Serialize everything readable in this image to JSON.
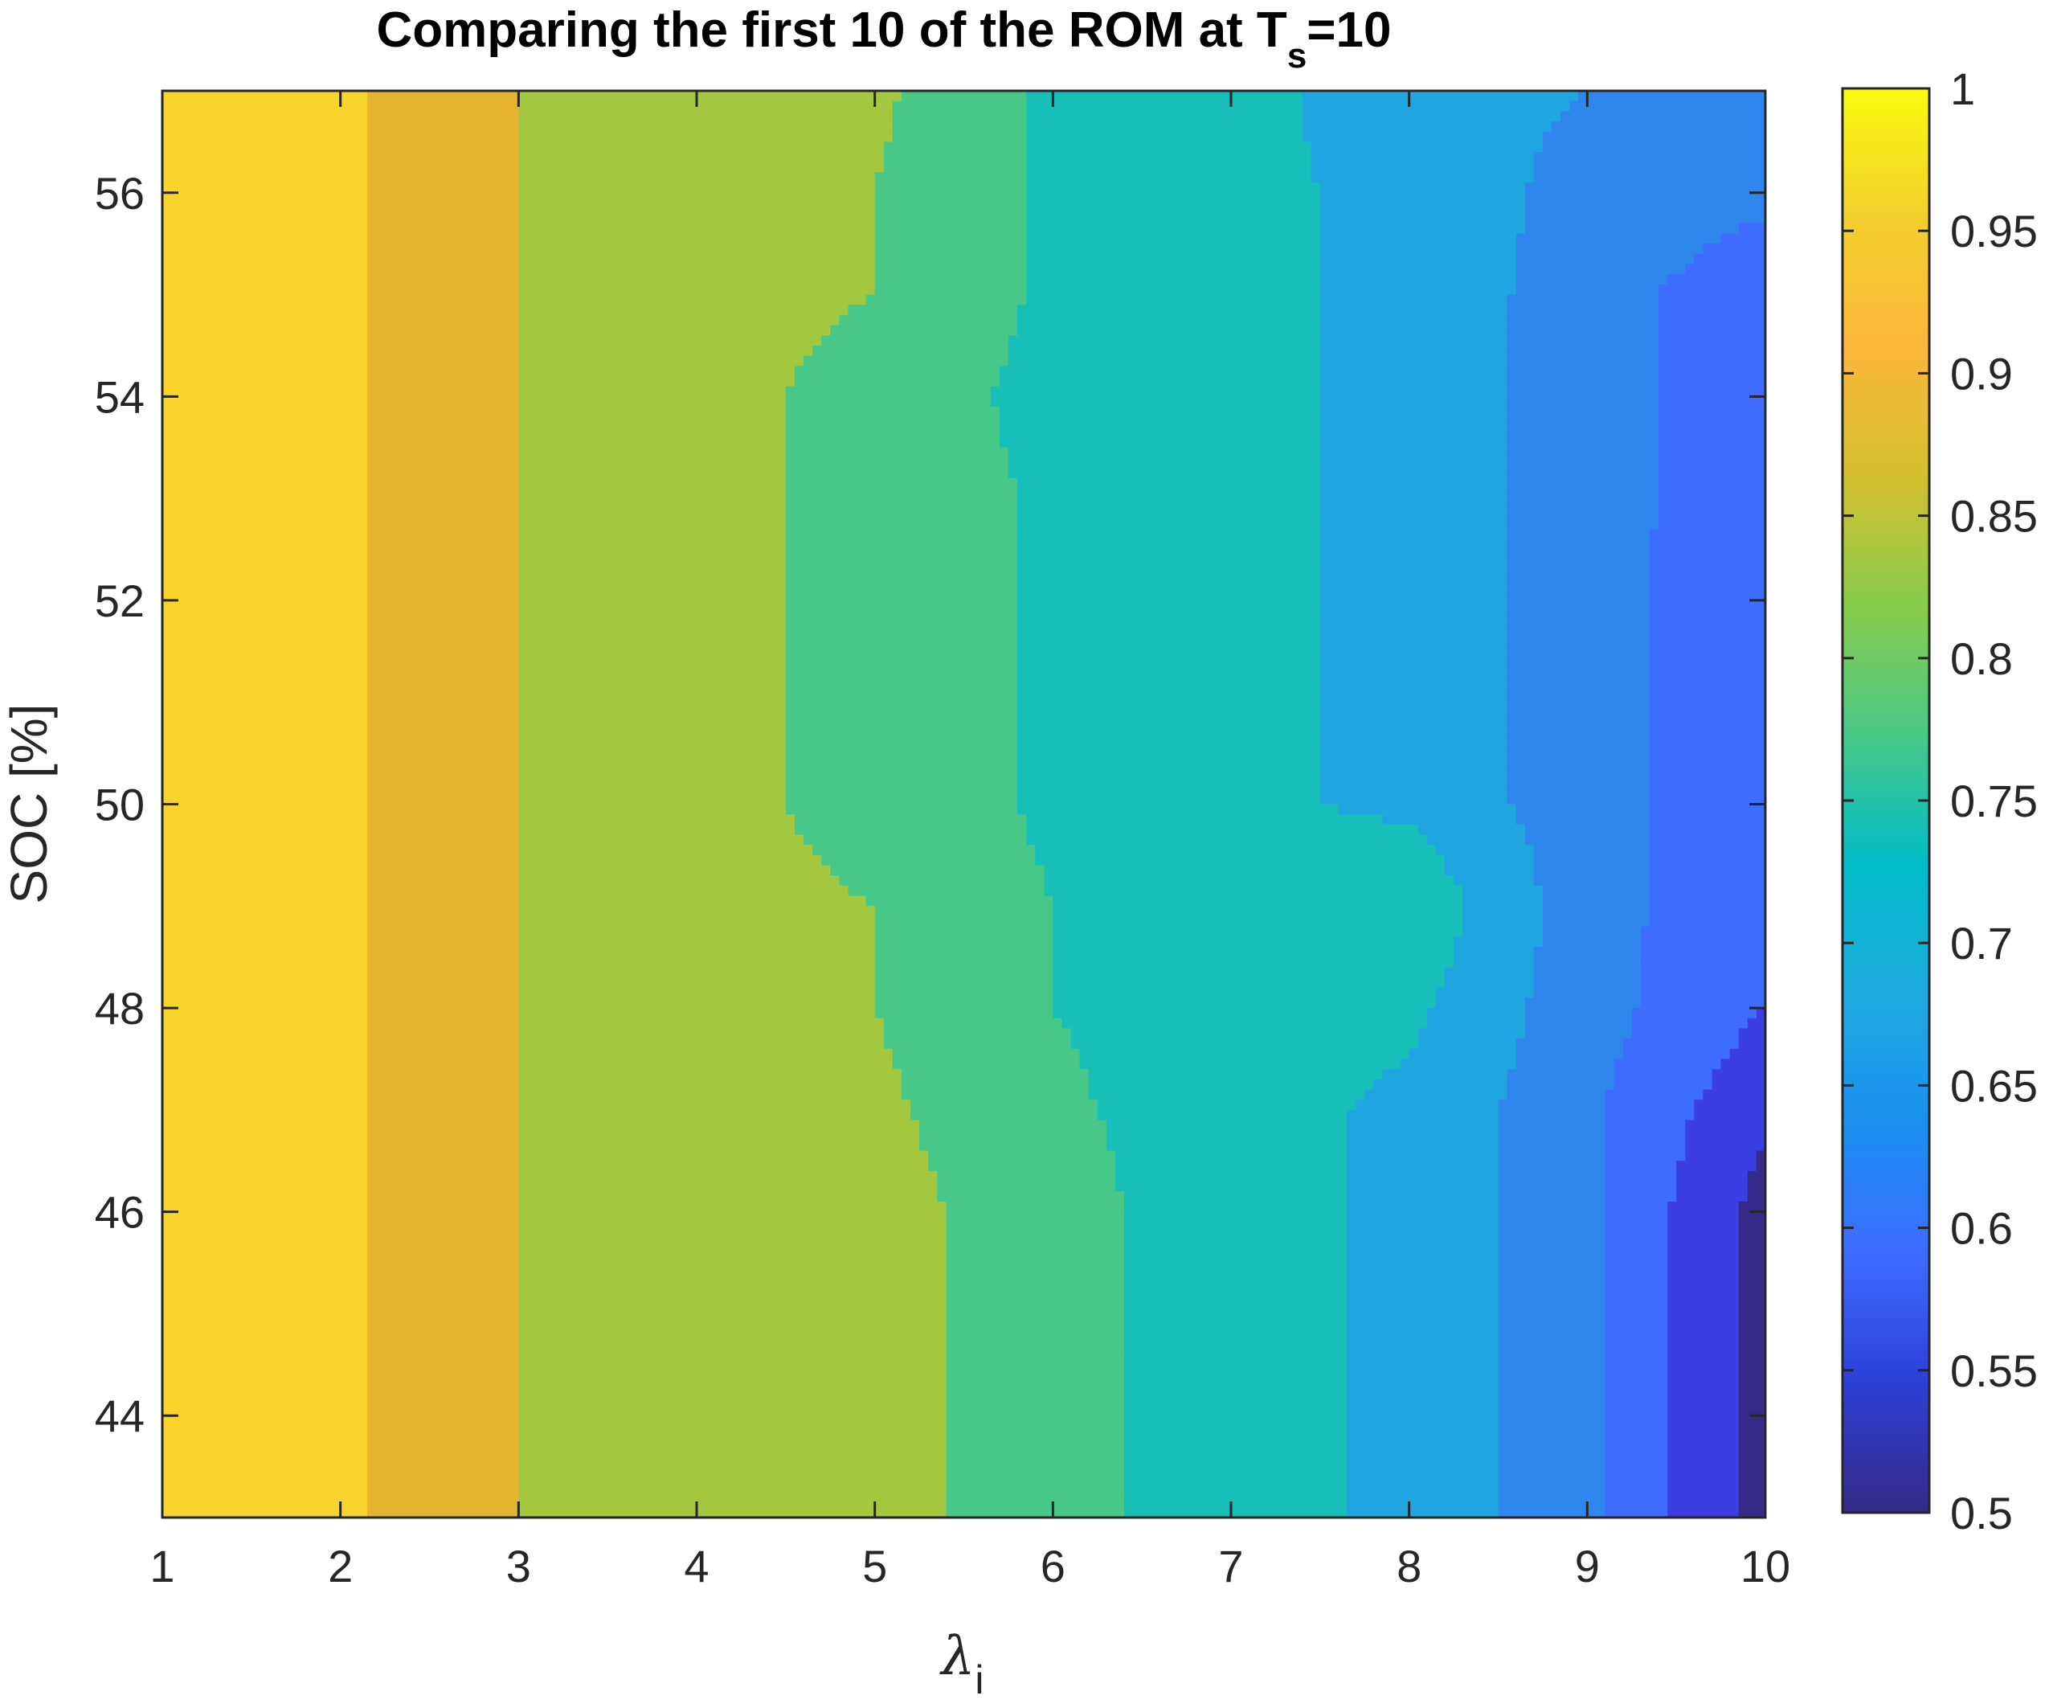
{
  "chart_data": {
    "type": "heatmap",
    "subtype": "filled-contour",
    "title_parts": {
      "main": "Comparing the first 10 of the ROM at T",
      "subscript": "s",
      "tail": "=10"
    },
    "xlabel_parts": {
      "main": "λ",
      "subscript": "i"
    },
    "ylabel": "SOC [%]",
    "xlim": [
      1,
      10
    ],
    "ylim": [
      43,
      57
    ],
    "xticks": [
      "1",
      "2",
      "3",
      "4",
      "5",
      "6",
      "7",
      "8",
      "9",
      "10"
    ],
    "yticks": [
      "44",
      "46",
      "48",
      "50",
      "52",
      "54",
      "56"
    ],
    "x": [
      1,
      2,
      3,
      4,
      5,
      6,
      7,
      8,
      9,
      10
    ],
    "y": [
      43,
      44,
      45,
      46,
      47,
      48,
      49,
      50,
      51,
      52,
      53,
      54,
      55,
      56,
      57
    ],
    "z_approx": [
      [
        0.96,
        0.96,
        0.9,
        0.89,
        0.87,
        0.82,
        0.77,
        0.74,
        0.66,
        0.53
      ],
      [
        0.96,
        0.96,
        0.9,
        0.89,
        0.87,
        0.82,
        0.77,
        0.74,
        0.66,
        0.53
      ],
      [
        0.96,
        0.96,
        0.9,
        0.89,
        0.87,
        0.82,
        0.77,
        0.74,
        0.66,
        0.53
      ],
      [
        0.96,
        0.96,
        0.9,
        0.89,
        0.87,
        0.82,
        0.77,
        0.74,
        0.66,
        0.53
      ],
      [
        0.96,
        0.96,
        0.9,
        0.86,
        0.86,
        0.81,
        0.77,
        0.74,
        0.66,
        0.56
      ],
      [
        0.96,
        0.96,
        0.9,
        0.86,
        0.85,
        0.8,
        0.77,
        0.76,
        0.67,
        0.6
      ],
      [
        0.96,
        0.96,
        0.9,
        0.86,
        0.85,
        0.8,
        0.8,
        0.79,
        0.67,
        0.61
      ],
      [
        0.96,
        0.96,
        0.9,
        0.86,
        0.84,
        0.79,
        0.76,
        0.74,
        0.67,
        0.61
      ],
      [
        0.96,
        0.96,
        0.9,
        0.86,
        0.84,
        0.79,
        0.76,
        0.74,
        0.67,
        0.61
      ],
      [
        0.96,
        0.96,
        0.9,
        0.86,
        0.84,
        0.79,
        0.76,
        0.74,
        0.67,
        0.61
      ],
      [
        0.96,
        0.96,
        0.9,
        0.86,
        0.84,
        0.79,
        0.76,
        0.74,
        0.67,
        0.62
      ],
      [
        0.96,
        0.96,
        0.9,
        0.86,
        0.84,
        0.78,
        0.76,
        0.74,
        0.67,
        0.62
      ],
      [
        0.96,
        0.96,
        0.9,
        0.86,
        0.85,
        0.79,
        0.76,
        0.74,
        0.67,
        0.62
      ],
      [
        0.96,
        0.96,
        0.9,
        0.86,
        0.85,
        0.79,
        0.76,
        0.74,
        0.68,
        0.66
      ],
      [
        0.96,
        0.96,
        0.9,
        0.86,
        0.86,
        0.79,
        0.77,
        0.72,
        0.7,
        0.67
      ]
    ],
    "colorbar": {
      "range": [
        0.5,
        1
      ],
      "ticks": [
        "0.5",
        "0.55",
        "0.6",
        "0.65",
        "0.7",
        "0.75",
        "0.8",
        "0.85",
        "0.9",
        "0.95",
        "1"
      ]
    },
    "colormap": "parula",
    "levels": [
      {
        "lo": 0.5,
        "hi": 0.55,
        "color": "#352a87"
      },
      {
        "lo": 0.55,
        "hi": 0.6,
        "color": "#3b3ee0"
      },
      {
        "lo": 0.6,
        "hi": 0.65,
        "color": "#3e6cff"
      },
      {
        "lo": 0.65,
        "hi": 0.7,
        "color": "#2f87ee"
      },
      {
        "lo": 0.7,
        "hi": 0.75,
        "color": "#1fa6e0"
      },
      {
        "lo": 0.75,
        "hi": 0.8,
        "color": "#18bfb8"
      },
      {
        "lo": 0.8,
        "hi": 0.85,
        "color": "#48c888"
      },
      {
        "lo": 0.85,
        "hi": 0.9,
        "color": "#a3c840"
      },
      {
        "lo": 0.9,
        "hi": 0.95,
        "color": "#e6b42f"
      },
      {
        "lo": 0.95,
        "hi": 1.0,
        "color": "#f8d42d"
      }
    ],
    "colorbar_gradient": [
      "#352a87",
      "#2c3fd6",
      "#3e6cff",
      "#1a8ff0",
      "#1fabe0",
      "#00bcc7",
      "#48c888",
      "#88cc4c",
      "#d4bf2f",
      "#fcb73c",
      "#f3cf2e",
      "#f9fb0e"
    ],
    "grid": false,
    "box": true
  }
}
